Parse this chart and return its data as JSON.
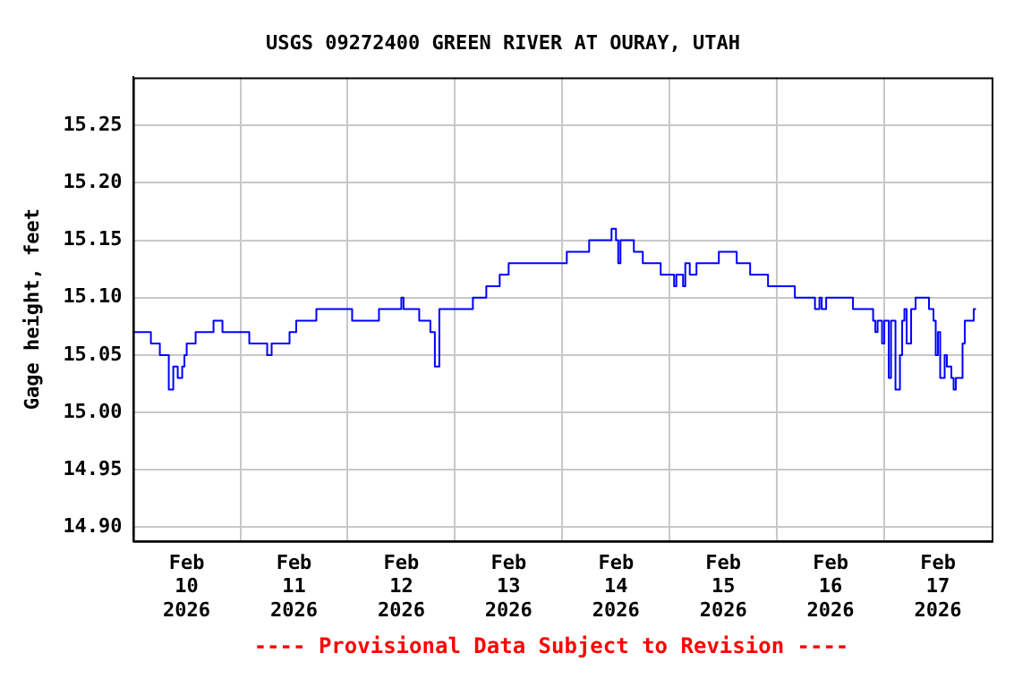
{
  "chart_data": {
    "type": "step",
    "title": "USGS 09272400 GREEN RIVER AT OURAY, UTAH",
    "ylabel": "Gage height, feet",
    "annotations": [
      "---- Provisional Data Subject to Revision ----"
    ],
    "x": [
      "2026-02-10T00:00",
      "2026-02-10T04:00",
      "2026-02-10T06:00",
      "2026-02-10T08:00",
      "2026-02-10T09:00",
      "2026-02-10T10:00",
      "2026-02-10T11:00",
      "2026-02-10T11:30",
      "2026-02-10T12:00",
      "2026-02-10T14:00",
      "2026-02-10T18:00",
      "2026-02-10T20:00",
      "2026-02-11T02:00",
      "2026-02-11T06:00",
      "2026-02-11T07:00",
      "2026-02-11T11:00",
      "2026-02-11T12:30",
      "2026-02-11T17:00",
      "2026-02-12T01:00",
      "2026-02-12T07:00",
      "2026-02-12T12:00",
      "2026-02-12T12:30",
      "2026-02-12T16:00",
      "2026-02-12T18:30",
      "2026-02-12T19:30",
      "2026-02-12T20:30",
      "2026-02-13T04:00",
      "2026-02-13T07:00",
      "2026-02-13T10:00",
      "2026-02-13T12:00",
      "2026-02-14T01:00",
      "2026-02-14T06:00",
      "2026-02-14T11:00",
      "2026-02-14T12:00",
      "2026-02-14T12:30",
      "2026-02-14T13:00",
      "2026-02-14T16:00",
      "2026-02-14T18:00",
      "2026-02-14T22:00",
      "2026-02-15T01:00",
      "2026-02-15T01:30",
      "2026-02-15T03:00",
      "2026-02-15T03:30",
      "2026-02-15T04:30",
      "2026-02-15T06:00",
      "2026-02-15T11:00",
      "2026-02-15T15:00",
      "2026-02-15T18:00",
      "2026-02-15T22:00",
      "2026-02-16T04:00",
      "2026-02-16T08:30",
      "2026-02-16T09:30",
      "2026-02-16T10:00",
      "2026-02-16T11:00",
      "2026-02-16T17:00",
      "2026-02-16T21:30",
      "2026-02-16T22:00",
      "2026-02-16T22:30",
      "2026-02-16T23:30",
      "2026-02-17T00:00",
      "2026-02-17T01:00",
      "2026-02-17T01:30",
      "2026-02-17T02:30",
      "2026-02-17T03:30",
      "2026-02-17T04:00",
      "2026-02-17T04:30",
      "2026-02-17T05:00",
      "2026-02-17T06:00",
      "2026-02-17T07:00",
      "2026-02-17T10:00",
      "2026-02-17T11:00",
      "2026-02-17T11:30",
      "2026-02-17T12:00",
      "2026-02-17T12:30",
      "2026-02-17T13:30",
      "2026-02-17T14:00",
      "2026-02-17T15:00",
      "2026-02-17T15:30",
      "2026-02-17T16:00",
      "2026-02-17T17:00",
      "2026-02-17T17:30",
      "2026-02-17T18:00",
      "2026-02-17T20:00",
      "2026-02-17T20:30"
    ],
    "series": [
      {
        "color": "#0000ff",
        "values": [
          15.07,
          15.06,
          15.05,
          15.02,
          15.04,
          15.03,
          15.04,
          15.05,
          15.06,
          15.07,
          15.08,
          15.07,
          15.06,
          15.05,
          15.06,
          15.07,
          15.08,
          15.09,
          15.08,
          15.09,
          15.1,
          15.09,
          15.08,
          15.07,
          15.04,
          15.09,
          15.1,
          15.11,
          15.12,
          15.13,
          15.14,
          15.15,
          15.16,
          15.15,
          15.13,
          15.15,
          15.14,
          15.13,
          15.12,
          15.11,
          15.12,
          15.11,
          15.13,
          15.12,
          15.13,
          15.14,
          15.13,
          15.12,
          15.11,
          15.1,
          15.09,
          15.1,
          15.09,
          15.1,
          15.09,
          15.08,
          15.07,
          15.08,
          15.06,
          15.08,
          15.03,
          15.08,
          15.02,
          15.05,
          15.08,
          15.09,
          15.06,
          15.09,
          15.1,
          15.09,
          15.08,
          15.05,
          15.07,
          15.03,
          15.05,
          15.04,
          15.03,
          15.02,
          15.03,
          15.03,
          15.06,
          15.08,
          15.09,
          15.09
        ]
      }
    ],
    "xlim": [
      "2026-02-10T00:00",
      "2026-02-18T00:00"
    ],
    "xticks": [
      {
        "value": "2026-02-10T12:00",
        "label": "Feb 10 2026"
      },
      {
        "value": "2026-02-11T00:00",
        "label": null
      },
      {
        "value": "2026-02-11T12:00",
        "label": "Feb 11 2026"
      },
      {
        "value": "2026-02-12T00:00",
        "label": null
      },
      {
        "value": "2026-02-12T12:00",
        "label": "Feb 12 2026"
      },
      {
        "value": "2026-02-13T00:00",
        "label": null
      },
      {
        "value": "2026-02-13T12:00",
        "label": "Feb 13 2026"
      },
      {
        "value": "2026-02-14T00:00",
        "label": null
      },
      {
        "value": "2026-02-14T12:00",
        "label": "Feb 14 2026"
      },
      {
        "value": "2026-02-15T00:00",
        "label": null
      },
      {
        "value": "2026-02-15T12:00",
        "label": "Feb 15 2026"
      },
      {
        "value": "2026-02-16T00:00",
        "label": null
      },
      {
        "value": "2026-02-16T12:00",
        "label": "Feb 16 2026"
      },
      {
        "value": "2026-02-17T00:00",
        "label": null
      },
      {
        "value": "2026-02-17T12:00",
        "label": "Feb 17 2026"
      }
    ],
    "ylim": [
      14.888,
      15.292
    ],
    "yticks": [
      {
        "value": 14.9,
        "label": "14.90"
      },
      {
        "value": 14.95,
        "label": "14.95"
      },
      {
        "value": 15.0,
        "label": "15.00"
      },
      {
        "value": 15.05,
        "label": "15.05"
      },
      {
        "value": 15.1,
        "label": "15.10"
      },
      {
        "value": 15.15,
        "label": "15.15"
      },
      {
        "value": 15.2,
        "label": "15.20"
      },
      {
        "value": 15.25,
        "label": "15.25"
      }
    ],
    "grid": true,
    "legend": false,
    "marker": "none",
    "line_style": "solid"
  }
}
